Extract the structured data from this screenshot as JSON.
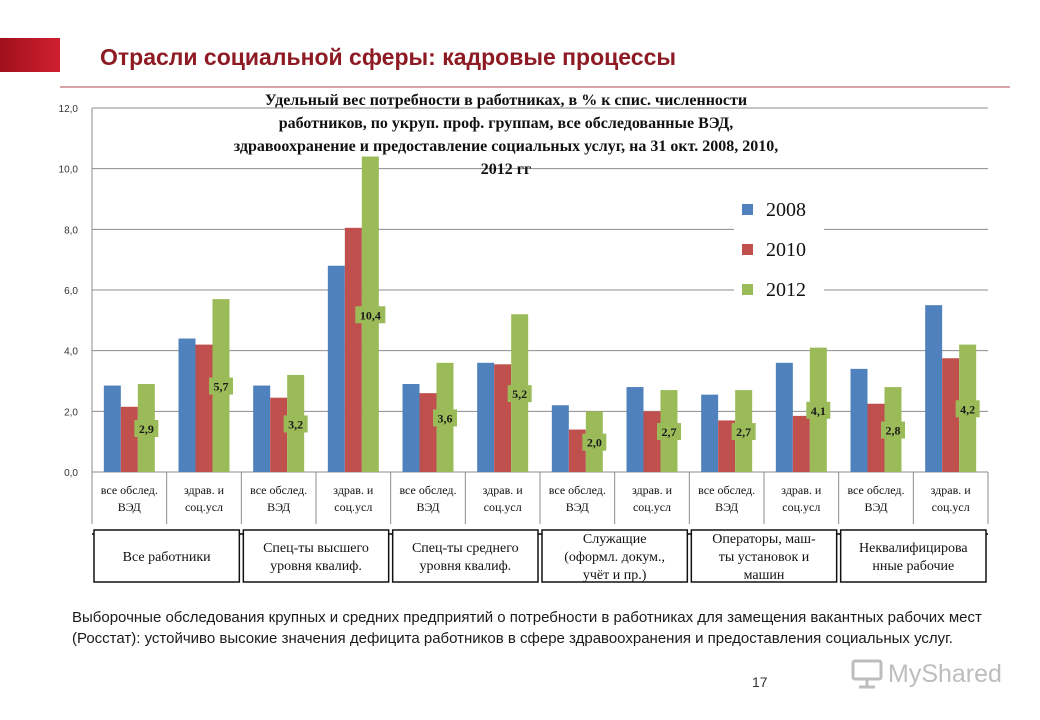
{
  "page": {
    "title": "Отрасли социальной сферы: кадровые процессы",
    "footnote": "Выборочные обследования крупных и средних предприятий о потребности в работниках для замещения вакантных рабочих мест (Росстат): устойчиво высокие значения дефицита работников в сфере здравоохранения и предоставления социальных услуг.",
    "page_number": "17",
    "watermark": "MyShared"
  },
  "colors": {
    "accent": "#b01826",
    "title": "#8e1b24",
    "series_2008": "#4f81bd",
    "series_2010": "#c0504d",
    "series_2012": "#9bbb59",
    "label_bg": "#9bbb59"
  },
  "chart_data": {
    "type": "bar",
    "title": "Удельный вес потребности в работниках, в % к спис. численности работников, по укруп. проф. группам, все обследованные ВЭД, здравоохранение и предоставление социальных услуг, на 31 окт. 2008, 2010, 2012 гг",
    "title_lines": [
      "Удельный вес потребности в работниках, в % к спис. численности",
      "работников, по укруп. проф. группам, все обследованные ВЭД,",
      "здравоохранение и предоставление социальных услуг, на 31 окт. 2008, 2010,",
      "2012 гг"
    ],
    "ylim": [
      0,
      12
    ],
    "y_ticks": [
      "0,0",
      "2,0",
      "4,0",
      "6,0",
      "8,0",
      "10,0",
      "12,0"
    ],
    "grid": true,
    "legend_position": "top-right",
    "categories": [
      [
        "все обслед.",
        "ВЭД"
      ],
      [
        "здрав. и",
        "соц.усл"
      ],
      [
        "все обслед.",
        "ВЭД"
      ],
      [
        "здрав. и",
        "соц.усл"
      ],
      [
        "все обслед.",
        "ВЭД"
      ],
      [
        "здрав. и",
        "соц.усл"
      ],
      [
        "все обслед.",
        "ВЭД"
      ],
      [
        "здрав. и",
        "соц.усл"
      ],
      [
        "все обслед.",
        "ВЭД"
      ],
      [
        "здрав. и",
        "соц.усл"
      ],
      [
        "все обслед.",
        "ВЭД"
      ],
      [
        "здрав. и",
        "соц.усл"
      ]
    ],
    "groups": [
      [
        "Все работники"
      ],
      [
        "Спец-ты высшего",
        "уровня квалиф."
      ],
      [
        "Спец-ты среднего",
        "уровня квалиф."
      ],
      [
        "Служащие",
        "(оформл. докум.,",
        "учёт и пр.)"
      ],
      [
        "Операторы, маш-",
        "ты установок и",
        "машин"
      ],
      [
        "Неквалифицирова",
        "нные рабочие"
      ]
    ],
    "series": [
      {
        "name": "2008",
        "values": [
          2.85,
          4.4,
          2.85,
          6.8,
          2.9,
          3.6,
          2.2,
          2.8,
          2.55,
          3.6,
          3.4,
          5.5
        ]
      },
      {
        "name": "2010",
        "values": [
          2.15,
          4.2,
          2.45,
          8.05,
          2.6,
          3.55,
          1.4,
          2.0,
          1.7,
          1.85,
          2.25,
          3.75
        ]
      },
      {
        "name": "2012",
        "values": [
          2.9,
          5.7,
          3.2,
          10.4,
          3.6,
          5.2,
          2.0,
          2.7,
          2.7,
          4.1,
          2.8,
          4.2
        ]
      }
    ],
    "data_labels_2012": [
      "2,9",
      "5,7",
      "3,2",
      "10,4",
      "3,6",
      "5,2",
      "2,0",
      "2,7",
      "2,7",
      "4,1",
      "2,8",
      "4,2"
    ]
  }
}
